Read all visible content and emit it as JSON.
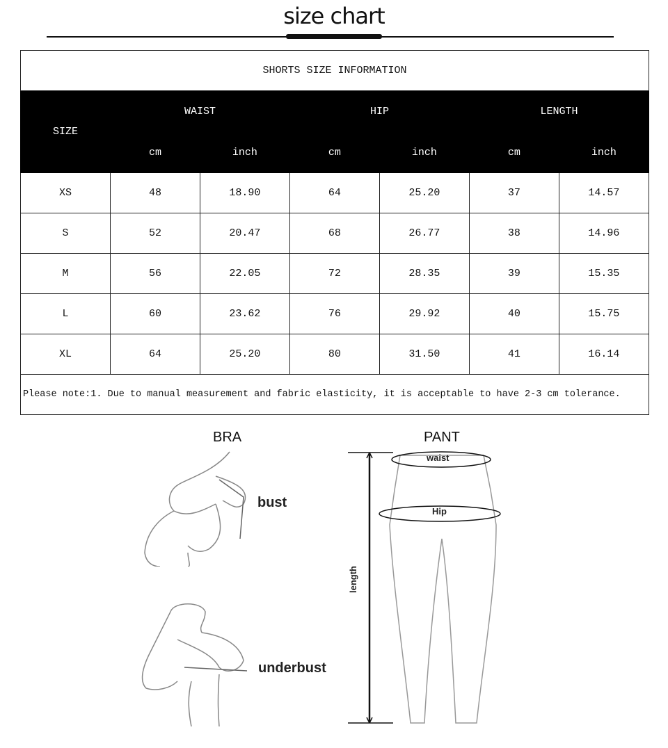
{
  "title": "size chart",
  "table": {
    "caption": "SHORTS SIZE INFORMATION",
    "size_header": "SIZE",
    "groups": [
      "WAIST",
      "HIP",
      "LENGTH"
    ],
    "units": [
      "cm",
      "inch",
      "cm",
      "inch",
      "cm",
      "inch"
    ],
    "rows": [
      [
        "XS",
        "48",
        "18.90",
        "64",
        "25.20",
        "37",
        "14.57"
      ],
      [
        "S",
        "52",
        "20.47",
        "68",
        "26.77",
        "38",
        "14.96"
      ],
      [
        "M",
        "56",
        "22.05",
        "72",
        "28.35",
        "39",
        "15.35"
      ],
      [
        "L",
        "60",
        "23.62",
        "76",
        "29.92",
        "40",
        "15.75"
      ],
      [
        "XL",
        "64",
        "25.20",
        "80",
        "31.50",
        "41",
        "16.14"
      ]
    ],
    "note": "Please note:1. Due to manual measurement and fabric elasticity, it is acceptable to have 2-3 cm tolerance."
  },
  "bra": {
    "title": "BRA",
    "bust": "bust",
    "underbust": "underbust"
  },
  "pant": {
    "title": "PANT",
    "waist": "waist",
    "hip": "Hip",
    "length": "length"
  }
}
